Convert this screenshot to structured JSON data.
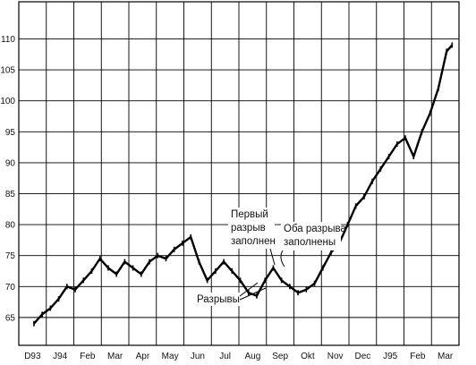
{
  "chart_data": {
    "type": "line",
    "title": "",
    "xlabel": "",
    "ylabel": "",
    "ylim": [
      60.5,
      116
    ],
    "grid": true,
    "legend": "none",
    "x_ticks": [
      "D93",
      "J94",
      "Feb",
      "Mar",
      "Apr",
      "May",
      "Jun",
      "Jul",
      "Aug",
      "Sep",
      "Okt",
      "Nov",
      "Dec",
      "J95",
      "Feb",
      "Mar"
    ],
    "y_ticks": [
      65,
      70,
      75,
      80,
      85,
      90,
      95,
      100,
      105,
      110
    ],
    "series": [
      {
        "x_month": [
          0,
          0.3,
          0.6,
          0.9,
          1.2,
          1.5,
          1.8,
          2.1,
          2.4,
          2.7,
          3.0,
          3.3,
          3.6,
          3.9,
          4.2,
          4.5,
          4.8,
          5.1,
          5.4,
          5.7,
          6.0,
          6.3,
          6.6,
          6.9,
          7.2,
          7.5,
          7.8,
          8.1,
          8.4,
          8.7,
          9.0,
          9.3,
          9.6,
          9.9,
          10.2,
          10.5,
          10.8,
          11.1,
          11.4,
          11.7,
          12.0,
          12.3,
          12.6,
          12.9,
          13.2,
          13.5,
          13.8,
          14.1,
          14.4,
          14.7,
          15.0,
          15.2
        ],
        "y": [
          64.0,
          65.5,
          66.5,
          68.0,
          70.0,
          69.5,
          71.0,
          72.5,
          74.5,
          73.0,
          72.0,
          74.0,
          73.0,
          72.0,
          74.0,
          75.0,
          74.5,
          76.0,
          77.0,
          78.0,
          74.0,
          71.0,
          72.5,
          74.0,
          72.5,
          71.0,
          69.0,
          68.5,
          71.0,
          73.0,
          71.0,
          70.0,
          69.0,
          69.5,
          70.5,
          73.0,
          75.5,
          77.0,
          80.0,
          83.0,
          84.5,
          87.0,
          89.0,
          91.0,
          93.0,
          94.0,
          91.0,
          95.0,
          98.0,
          102.0,
          108.0,
          109.0
        ]
      }
    ],
    "annotations": [
      {
        "lines": [
          "Первый",
          "разрыв",
          "заполнен"
        ]
      },
      {
        "lines": [
          "Оба разрыва",
          "заполнены"
        ]
      },
      {
        "lines": [
          "Разрывы"
        ]
      }
    ]
  },
  "annotations": {
    "first_gap_line1": "Первый",
    "first_gap_line2": "разрыв",
    "first_gap_line3": "заполнен",
    "both_gaps_line1": "Оба разрыва",
    "both_gaps_line2": "заполнены",
    "gaps": "Разрывы"
  }
}
